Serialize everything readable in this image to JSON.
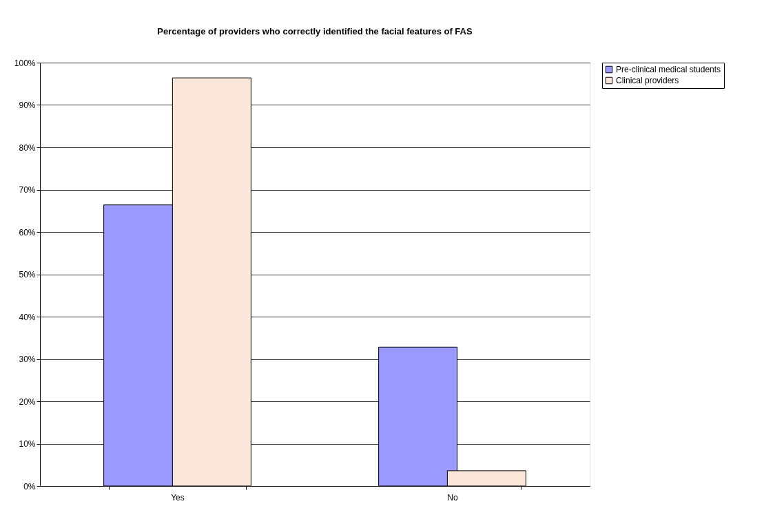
{
  "chart_data": {
    "type": "bar",
    "title": "Percentage of providers who correctly identified the facial features of FAS",
    "categories": [
      "Yes",
      "No"
    ],
    "series": [
      {
        "name": "Pre-clinical medical students",
        "color": "#9999ff",
        "values": [
          66.4,
          32.8
        ]
      },
      {
        "name": "Clinical providers",
        "color": "#fbe7d9",
        "values": [
          96.4,
          3.6
        ]
      }
    ],
    "ylim": [
      0,
      100
    ],
    "yticks": [
      {
        "value": 0,
        "label": "0%"
      },
      {
        "value": 10,
        "label": "10%"
      },
      {
        "value": 20,
        "label": "20%"
      },
      {
        "value": 30,
        "label": "30%"
      },
      {
        "value": 40,
        "label": "40%"
      },
      {
        "value": 50,
        "label": "50%"
      },
      {
        "value": 60,
        "label": "60%"
      },
      {
        "value": 70,
        "label": "70%"
      },
      {
        "value": 80,
        "label": "80%"
      },
      {
        "value": 90,
        "label": "90%"
      },
      {
        "value": 100,
        "label": "100%"
      }
    ],
    "grid": "y",
    "legend": "right"
  }
}
